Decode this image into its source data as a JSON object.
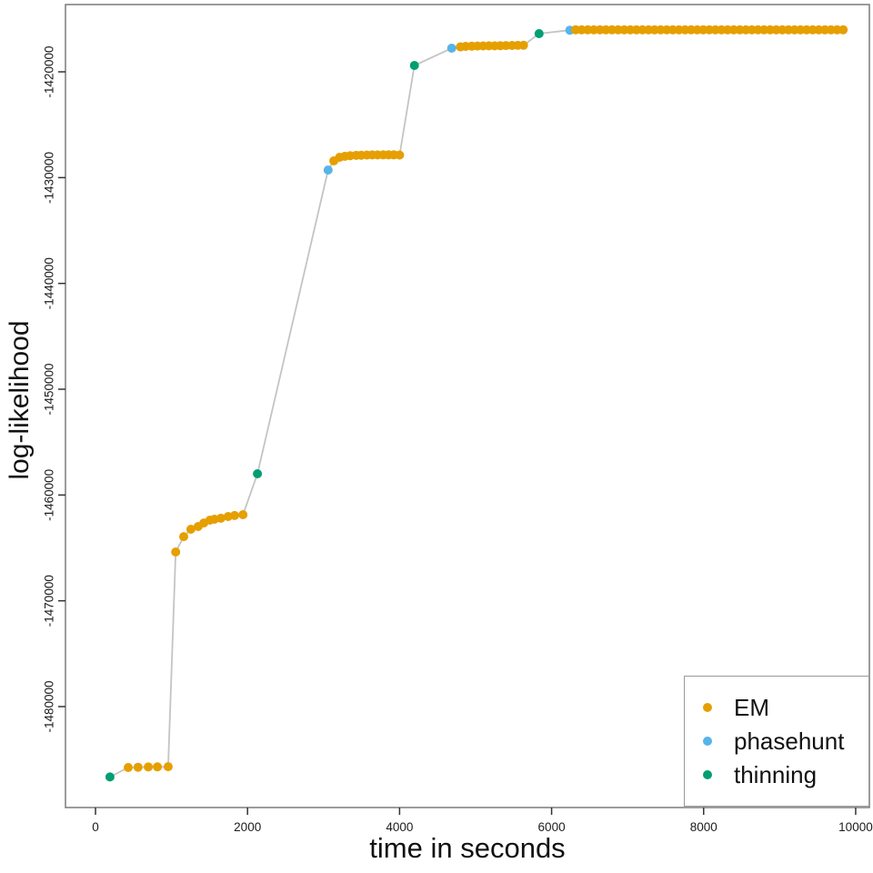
{
  "chart_data": {
    "type": "scatter",
    "title": "",
    "xlabel": "time in seconds",
    "ylabel": "log-likelihood",
    "xlim": [
      -395,
      10180
    ],
    "ylim": [
      -1489540,
      -1413640
    ],
    "grid": false,
    "line_color": "#c4c4c4",
    "x_ticks": {
      "values": [
        0,
        2000,
        4000,
        6000,
        8000,
        10000
      ],
      "labels": [
        "0",
        "2000",
        "4000",
        "6000",
        "8000",
        "10000"
      ]
    },
    "y_ticks": {
      "values": [
        -1420000,
        -1430000,
        -1440000,
        -1450000,
        -1460000,
        -1470000,
        -1480000
      ],
      "labels": [
        "-1420000",
        "-1430000",
        "-1440000",
        "-1450000",
        "-1460000",
        "-1470000",
        "-1480000"
      ]
    },
    "legend": {
      "position": "bottom-right",
      "items": [
        {
          "label": "EM",
          "color": "#E69F00"
        },
        {
          "label": "phasehunt",
          "color": "#56B4E9"
        },
        {
          "label": "thinning",
          "color": "#009E73"
        }
      ]
    },
    "series": [
      {
        "name": "EM",
        "color": "#E69F00",
        "points": [
          [
            430,
            -1485760
          ],
          [
            560,
            -1485730
          ],
          [
            695,
            -1485710
          ],
          [
            815,
            -1485700
          ],
          [
            955,
            -1485680
          ],
          [
            1055,
            -1465390
          ],
          [
            1160,
            -1463930
          ],
          [
            1255,
            -1463240
          ],
          [
            1350,
            -1462980
          ],
          [
            1425,
            -1462640
          ],
          [
            1505,
            -1462380
          ],
          [
            1565,
            -1462290
          ],
          [
            1650,
            -1462200
          ],
          [
            1745,
            -1462030
          ],
          [
            1830,
            -1461940
          ],
          [
            1940,
            -1461860
          ],
          [
            3135,
            -1428420
          ],
          [
            3210,
            -1428080
          ],
          [
            3280,
            -1427990
          ],
          [
            3350,
            -1427930
          ],
          [
            3430,
            -1427900
          ],
          [
            3495,
            -1427880
          ],
          [
            3570,
            -1427870
          ],
          [
            3640,
            -1427860
          ],
          [
            3710,
            -1427860
          ],
          [
            3785,
            -1427850
          ],
          [
            3855,
            -1427850
          ],
          [
            3925,
            -1427850
          ],
          [
            4000,
            -1427870
          ],
          [
            4800,
            -1417640
          ],
          [
            4870,
            -1417590
          ],
          [
            4950,
            -1417580
          ],
          [
            5025,
            -1417560
          ],
          [
            5100,
            -1417550
          ],
          [
            5175,
            -1417540
          ],
          [
            5250,
            -1417540
          ],
          [
            5325,
            -1417530
          ],
          [
            5400,
            -1417520
          ],
          [
            5480,
            -1417510
          ],
          [
            5555,
            -1417500
          ],
          [
            5630,
            -1417490
          ],
          [
            6315,
            -1416030
          ],
          [
            6395,
            -1416030
          ],
          [
            6475,
            -1416030
          ],
          [
            6555,
            -1416030
          ],
          [
            6635,
            -1416030
          ],
          [
            6715,
            -1416030
          ],
          [
            6795,
            -1416030
          ],
          [
            6875,
            -1416030
          ],
          [
            6955,
            -1416030
          ],
          [
            7035,
            -1416030
          ],
          [
            7115,
            -1416030
          ],
          [
            7195,
            -1416030
          ],
          [
            7275,
            -1416030
          ],
          [
            7355,
            -1416030
          ],
          [
            7435,
            -1416030
          ],
          [
            7515,
            -1416030
          ],
          [
            7595,
            -1416030
          ],
          [
            7675,
            -1416030
          ],
          [
            7755,
            -1416030
          ],
          [
            7835,
            -1416030
          ],
          [
            7915,
            -1416030
          ],
          [
            7995,
            -1416030
          ],
          [
            8075,
            -1416030
          ],
          [
            8155,
            -1416030
          ],
          [
            8235,
            -1416030
          ],
          [
            8315,
            -1416030
          ],
          [
            8395,
            -1416030
          ],
          [
            8475,
            -1416030
          ],
          [
            8555,
            -1416030
          ],
          [
            8635,
            -1416030
          ],
          [
            8715,
            -1416030
          ],
          [
            8795,
            -1416030
          ],
          [
            8875,
            -1416030
          ],
          [
            8955,
            -1416030
          ],
          [
            9035,
            -1416030
          ],
          [
            9115,
            -1416030
          ],
          [
            9195,
            -1416030
          ],
          [
            9275,
            -1416030
          ],
          [
            9355,
            -1416030
          ],
          [
            9435,
            -1416030
          ],
          [
            9515,
            -1416030
          ],
          [
            9595,
            -1416030
          ],
          [
            9675,
            -1416030
          ],
          [
            9755,
            -1416030
          ],
          [
            9835,
            -1416030
          ]
        ]
      },
      {
        "name": "phasehunt",
        "color": "#56B4E9",
        "points": [
          [
            3060,
            -1429280
          ],
          [
            4685,
            -1417770
          ],
          [
            6240,
            -1416060
          ]
        ]
      },
      {
        "name": "thinning",
        "color": "#009E73",
        "points": [
          [
            190,
            -1486650
          ],
          [
            2130,
            -1457990
          ],
          [
            4195,
            -1419400
          ],
          [
            5835,
            -1416390
          ]
        ]
      }
    ]
  }
}
